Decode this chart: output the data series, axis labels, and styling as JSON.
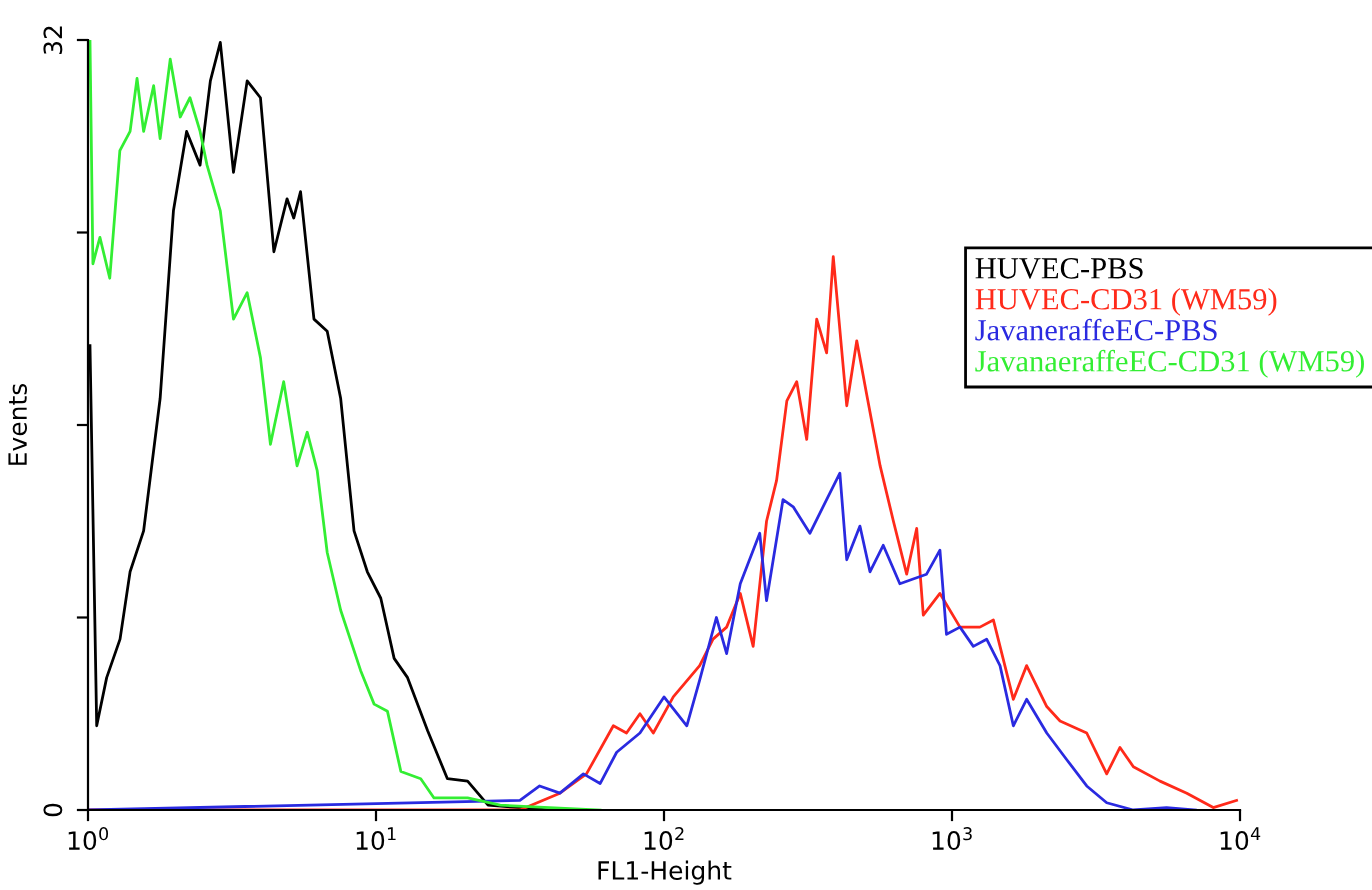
{
  "chart_data": {
    "type": "line",
    "xlabel": "FL1-Height",
    "ylabel": "Events",
    "log": "x",
    "xlim": [
      1,
      10000
    ],
    "xticks": [
      {
        "value": 1,
        "label": "10$^{0}$"
      },
      {
        "value": 10,
        "label": "10$^{1}$"
      },
      {
        "value": 100,
        "label": "10$^{2}$"
      },
      {
        "value": 1000,
        "label": "10$^{3}$"
      },
      {
        "value": 10000,
        "label": "10$^{4}$"
      }
    ],
    "ylim": [
      0,
      32
    ],
    "yticks": [
      0,
      {
        "value": 8,
        "label": null
      },
      {
        "value": 16,
        "label": null
      },
      {
        "value": 24,
        "label": null
      },
      32
    ],
    "grid": false,
    "legend": "top right",
    "marker": "none",
    "line_style": "solid",
    "series": [
      {
        "name": "HUVEC-PBS",
        "color": "#000000",
        "x": [
          1.016,
          1.072,
          1.161,
          1.292,
          1.4,
          1.56,
          1.78,
          1.98,
          2.2,
          2.45,
          2.66,
          2.88,
          3.2,
          3.57,
          3.97,
          4.42,
          4.91,
          5.18,
          5.47,
          6.09,
          6.77,
          7.54,
          8.39,
          9.33,
          10.39,
          11.56,
          12.87,
          15.1,
          17.7,
          20.8,
          24.5,
          40
        ],
        "values": [
          19.3,
          3.5,
          5.5,
          7.1,
          9.9,
          11.6,
          17.1,
          24.9,
          28.2,
          26.8,
          30.3,
          31.9,
          26.5,
          30.3,
          29.6,
          23.2,
          25.4,
          24.6,
          25.7,
          20.4,
          19.9,
          17.1,
          11.6,
          9.9,
          8.8,
          6.3,
          5.5,
          3.3,
          1.3,
          1.2,
          0.2,
          0
        ]
      },
      {
        "name": "HUVEC-CD31 (WM59)",
        "color": "#ff2a1a",
        "x": [
          1.0,
          31.6,
          43.5,
          53.8,
          66.7,
          74.1,
          82.5,
          91.8,
          107.7,
          133,
          148,
          165,
          184,
          204,
          227,
          246,
          267,
          289,
          313,
          339,
          367,
          387,
          431,
          467,
          505,
          563,
          626,
          696,
          754,
          795,
          908,
          1066,
          1250,
          1392,
          1633,
          1816,
          2133,
          2372,
          2936,
          3445,
          3831,
          4263,
          5275,
          6535,
          8075,
          9730
        ],
        "values": [
          0,
          0,
          0.7,
          1.5,
          3.5,
          3.2,
          4.0,
          3.2,
          4.7,
          6.0,
          7.1,
          7.6,
          9.0,
          6.8,
          12.0,
          13.7,
          17.0,
          17.8,
          15.4,
          20.4,
          19.0,
          23.0,
          16.8,
          19.5,
          17.3,
          14.3,
          12.0,
          9.8,
          11.7,
          8.1,
          9.0,
          7.6,
          7.6,
          7.9,
          4.6,
          6.0,
          4.3,
          3.7,
          3.2,
          1.5,
          2.6,
          1.8,
          1.2,
          0.7,
          0.1,
          0.4
        ]
      },
      {
        "name": "JavaneraffeEC-PBS",
        "color": "#2a2ae0",
        "x": [
          1.0,
          31.6,
          37,
          43.5,
          52.5,
          60,
          68.5,
          82.5,
          100,
          120,
          133,
          152,
          165,
          184,
          215,
          227,
          259,
          281,
          321,
          367,
          408,
          431,
          479,
          519,
          577,
          659,
          733,
          816,
          908,
          957,
          1066,
          1186,
          1319,
          1468,
          1633,
          1816,
          2133,
          2500,
          2936,
          3445,
          4263,
          5560,
          7000
        ],
        "values": [
          0,
          0.4,
          1.0,
          0.7,
          1.5,
          1.1,
          2.4,
          3.2,
          4.7,
          3.5,
          5.4,
          8.0,
          6.5,
          9.4,
          11.5,
          8.7,
          12.9,
          12.6,
          11.5,
          12.9,
          14.0,
          10.4,
          11.8,
          9.9,
          11.0,
          9.4,
          9.6,
          9.8,
          10.8,
          7.3,
          7.6,
          6.8,
          7.1,
          6.0,
          3.5,
          4.6,
          3.2,
          2.1,
          1.0,
          0.3,
          0,
          0.1,
          0
        ]
      },
      {
        "name": "JavanaeraffeEC-CD31 (WM59)",
        "color": "#33ee33",
        "x": [
          1.016,
          1.04,
          1.1,
          1.19,
          1.29,
          1.4,
          1.48,
          1.56,
          1.69,
          1.78,
          1.93,
          2.09,
          2.26,
          2.45,
          2.59,
          2.88,
          3.2,
          3.57,
          3.97,
          4.3,
          4.78,
          5.32,
          5.77,
          6.25,
          6.77,
          7.54,
          8.84,
          9.85,
          10.96,
          12.2,
          14.3,
          15.9,
          20.8,
          27,
          60
        ],
        "values": [
          32,
          22.7,
          23.8,
          22.1,
          27.4,
          28.2,
          30.4,
          28.2,
          30.1,
          27.9,
          31.2,
          28.8,
          29.6,
          28.2,
          26.8,
          24.9,
          20.4,
          21.5,
          18.8,
          15.2,
          17.8,
          14.3,
          15.7,
          14.1,
          10.7,
          8.3,
          5.8,
          4.4,
          4.1,
          1.6,
          1.3,
          0.5,
          0.5,
          0.2,
          0
        ]
      }
    ]
  }
}
